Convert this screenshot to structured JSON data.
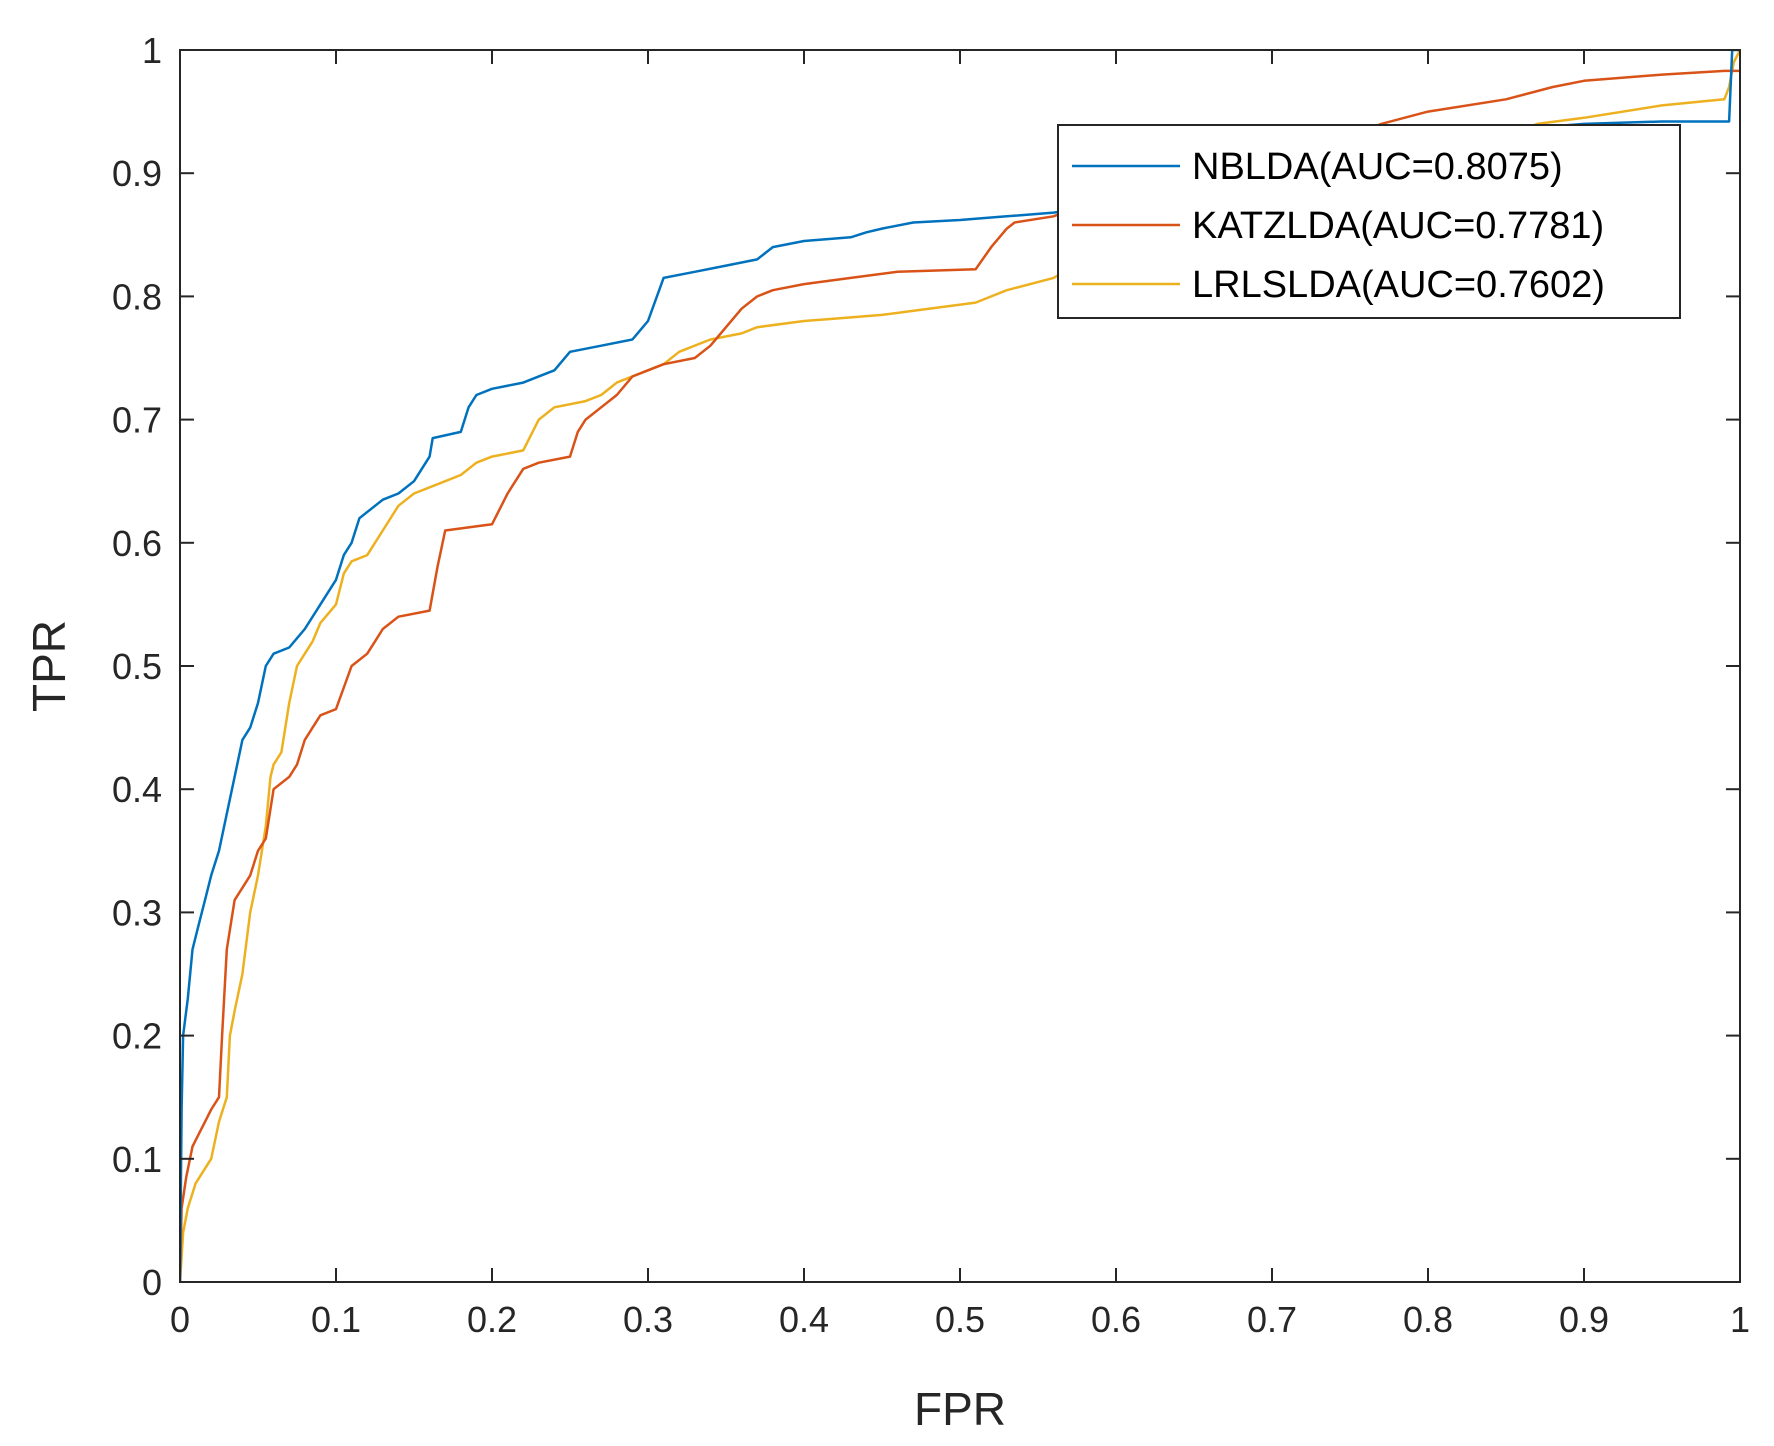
{
  "chart_data": {
    "type": "line",
    "title": "",
    "xlabel": "FPR",
    "ylabel": "TPR",
    "xlim": [
      0,
      1
    ],
    "ylim": [
      0,
      1
    ],
    "xticks": [
      "0",
      "0.1",
      "0.2",
      "0.3",
      "0.4",
      "0.5",
      "0.6",
      "0.7",
      "0.8",
      "0.9",
      "1"
    ],
    "yticks": [
      "0",
      "0.1",
      "0.2",
      "0.3",
      "0.4",
      "0.5",
      "0.6",
      "0.7",
      "0.8",
      "0.9",
      "1"
    ],
    "grid": false,
    "legend_position": "top-right",
    "series": [
      {
        "name": "NBLDA(AUC=0.8075)",
        "color": "#0072BD",
        "points": [
          [
            0,
            0
          ],
          [
            0.001,
            0.14
          ],
          [
            0.002,
            0.2
          ],
          [
            0.005,
            0.23
          ],
          [
            0.008,
            0.27
          ],
          [
            0.012,
            0.29
          ],
          [
            0.016,
            0.31
          ],
          [
            0.02,
            0.33
          ],
          [
            0.025,
            0.35
          ],
          [
            0.03,
            0.38
          ],
          [
            0.035,
            0.41
          ],
          [
            0.04,
            0.44
          ],
          [
            0.045,
            0.45
          ],
          [
            0.05,
            0.47
          ],
          [
            0.055,
            0.5
          ],
          [
            0.06,
            0.51
          ],
          [
            0.07,
            0.515
          ],
          [
            0.08,
            0.53
          ],
          [
            0.09,
            0.55
          ],
          [
            0.1,
            0.57
          ],
          [
            0.105,
            0.59
          ],
          [
            0.11,
            0.6
          ],
          [
            0.115,
            0.62
          ],
          [
            0.13,
            0.635
          ],
          [
            0.14,
            0.64
          ],
          [
            0.15,
            0.65
          ],
          [
            0.16,
            0.67
          ],
          [
            0.162,
            0.685
          ],
          [
            0.18,
            0.69
          ],
          [
            0.185,
            0.71
          ],
          [
            0.19,
            0.72
          ],
          [
            0.2,
            0.725
          ],
          [
            0.22,
            0.73
          ],
          [
            0.24,
            0.74
          ],
          [
            0.25,
            0.755
          ],
          [
            0.27,
            0.76
          ],
          [
            0.29,
            0.765
          ],
          [
            0.3,
            0.78
          ],
          [
            0.31,
            0.815
          ],
          [
            0.33,
            0.82
          ],
          [
            0.35,
            0.825
          ],
          [
            0.37,
            0.83
          ],
          [
            0.38,
            0.84
          ],
          [
            0.4,
            0.845
          ],
          [
            0.43,
            0.848
          ],
          [
            0.44,
            0.852
          ],
          [
            0.45,
            0.855
          ],
          [
            0.47,
            0.86
          ],
          [
            0.5,
            0.862
          ],
          [
            0.53,
            0.865
          ],
          [
            0.56,
            0.868
          ],
          [
            0.57,
            0.87
          ],
          [
            0.6,
            0.873
          ],
          [
            0.62,
            0.876
          ],
          [
            0.65,
            0.88
          ],
          [
            0.7,
            0.895
          ],
          [
            0.75,
            0.91
          ],
          [
            0.8,
            0.925
          ],
          [
            0.85,
            0.935
          ],
          [
            0.9,
            0.94
          ],
          [
            0.95,
            0.942
          ],
          [
            0.993,
            0.942
          ],
          [
            0.995,
            1
          ],
          [
            1,
            1
          ]
        ]
      },
      {
        "name": "KATZLDA(AUC=0.7781)",
        "color": "#D95319",
        "points": [
          [
            0,
            0
          ],
          [
            0.001,
            0.06
          ],
          [
            0.004,
            0.085
          ],
          [
            0.008,
            0.11
          ],
          [
            0.012,
            0.12
          ],
          [
            0.016,
            0.13
          ],
          [
            0.02,
            0.14
          ],
          [
            0.025,
            0.15
          ],
          [
            0.027,
            0.2
          ],
          [
            0.03,
            0.27
          ],
          [
            0.035,
            0.31
          ],
          [
            0.04,
            0.32
          ],
          [
            0.045,
            0.33
          ],
          [
            0.05,
            0.35
          ],
          [
            0.055,
            0.36
          ],
          [
            0.06,
            0.4
          ],
          [
            0.07,
            0.41
          ],
          [
            0.075,
            0.42
          ],
          [
            0.08,
            0.44
          ],
          [
            0.085,
            0.45
          ],
          [
            0.09,
            0.46
          ],
          [
            0.1,
            0.465
          ],
          [
            0.11,
            0.5
          ],
          [
            0.12,
            0.51
          ],
          [
            0.125,
            0.52
          ],
          [
            0.13,
            0.53
          ],
          [
            0.14,
            0.54
          ],
          [
            0.16,
            0.545
          ],
          [
            0.165,
            0.58
          ],
          [
            0.17,
            0.61
          ],
          [
            0.2,
            0.615
          ],
          [
            0.21,
            0.64
          ],
          [
            0.22,
            0.66
          ],
          [
            0.23,
            0.665
          ],
          [
            0.25,
            0.67
          ],
          [
            0.255,
            0.69
          ],
          [
            0.26,
            0.7
          ],
          [
            0.27,
            0.71
          ],
          [
            0.28,
            0.72
          ],
          [
            0.29,
            0.735
          ],
          [
            0.3,
            0.74
          ],
          [
            0.31,
            0.745
          ],
          [
            0.33,
            0.75
          ],
          [
            0.34,
            0.76
          ],
          [
            0.35,
            0.775
          ],
          [
            0.36,
            0.79
          ],
          [
            0.37,
            0.8
          ],
          [
            0.38,
            0.805
          ],
          [
            0.4,
            0.81
          ],
          [
            0.43,
            0.815
          ],
          [
            0.46,
            0.82
          ],
          [
            0.51,
            0.822
          ],
          [
            0.52,
            0.84
          ],
          [
            0.53,
            0.855
          ],
          [
            0.535,
            0.86
          ],
          [
            0.56,
            0.865
          ],
          [
            0.57,
            0.87
          ],
          [
            0.6,
            0.875
          ],
          [
            0.65,
            0.89
          ],
          [
            0.7,
            0.91
          ],
          [
            0.75,
            0.93
          ],
          [
            0.77,
            0.94
          ],
          [
            0.8,
            0.95
          ],
          [
            0.85,
            0.96
          ],
          [
            0.88,
            0.97
          ],
          [
            0.9,
            0.975
          ],
          [
            0.95,
            0.98
          ],
          [
            0.99,
            0.983
          ],
          [
            1,
            0.983
          ]
        ]
      },
      {
        "name": "LRLSLDA(AUC=0.7602)",
        "color": "#EDB120",
        "points": [
          [
            0,
            0
          ],
          [
            0.002,
            0.04
          ],
          [
            0.005,
            0.06
          ],
          [
            0.01,
            0.08
          ],
          [
            0.015,
            0.09
          ],
          [
            0.02,
            0.1
          ],
          [
            0.025,
            0.13
          ],
          [
            0.03,
            0.15
          ],
          [
            0.032,
            0.2
          ],
          [
            0.035,
            0.22
          ],
          [
            0.04,
            0.25
          ],
          [
            0.045,
            0.3
          ],
          [
            0.05,
            0.33
          ],
          [
            0.055,
            0.37
          ],
          [
            0.058,
            0.41
          ],
          [
            0.06,
            0.42
          ],
          [
            0.065,
            0.43
          ],
          [
            0.07,
            0.47
          ],
          [
            0.075,
            0.5
          ],
          [
            0.08,
            0.51
          ],
          [
            0.085,
            0.52
          ],
          [
            0.09,
            0.535
          ],
          [
            0.1,
            0.55
          ],
          [
            0.105,
            0.575
          ],
          [
            0.11,
            0.585
          ],
          [
            0.12,
            0.59
          ],
          [
            0.13,
            0.61
          ],
          [
            0.14,
            0.63
          ],
          [
            0.15,
            0.64
          ],
          [
            0.17,
            0.65
          ],
          [
            0.18,
            0.655
          ],
          [
            0.19,
            0.665
          ],
          [
            0.2,
            0.67
          ],
          [
            0.22,
            0.675
          ],
          [
            0.23,
            0.7
          ],
          [
            0.24,
            0.71
          ],
          [
            0.26,
            0.715
          ],
          [
            0.27,
            0.72
          ],
          [
            0.28,
            0.73
          ],
          [
            0.3,
            0.74
          ],
          [
            0.31,
            0.745
          ],
          [
            0.32,
            0.755
          ],
          [
            0.34,
            0.765
          ],
          [
            0.36,
            0.77
          ],
          [
            0.37,
            0.775
          ],
          [
            0.4,
            0.78
          ],
          [
            0.42,
            0.782
          ],
          [
            0.45,
            0.785
          ],
          [
            0.48,
            0.79
          ],
          [
            0.51,
            0.795
          ],
          [
            0.53,
            0.805
          ],
          [
            0.56,
            0.815
          ],
          [
            0.58,
            0.83
          ],
          [
            0.6,
            0.84
          ],
          [
            0.65,
            0.86
          ],
          [
            0.7,
            0.88
          ],
          [
            0.75,
            0.9
          ],
          [
            0.8,
            0.915
          ],
          [
            0.85,
            0.93
          ],
          [
            0.87,
            0.94
          ],
          [
            0.9,
            0.945
          ],
          [
            0.95,
            0.955
          ],
          [
            0.99,
            0.96
          ],
          [
            0.993,
            0.97
          ],
          [
            0.996,
            0.99
          ],
          [
            1,
            1
          ]
        ]
      }
    ]
  }
}
